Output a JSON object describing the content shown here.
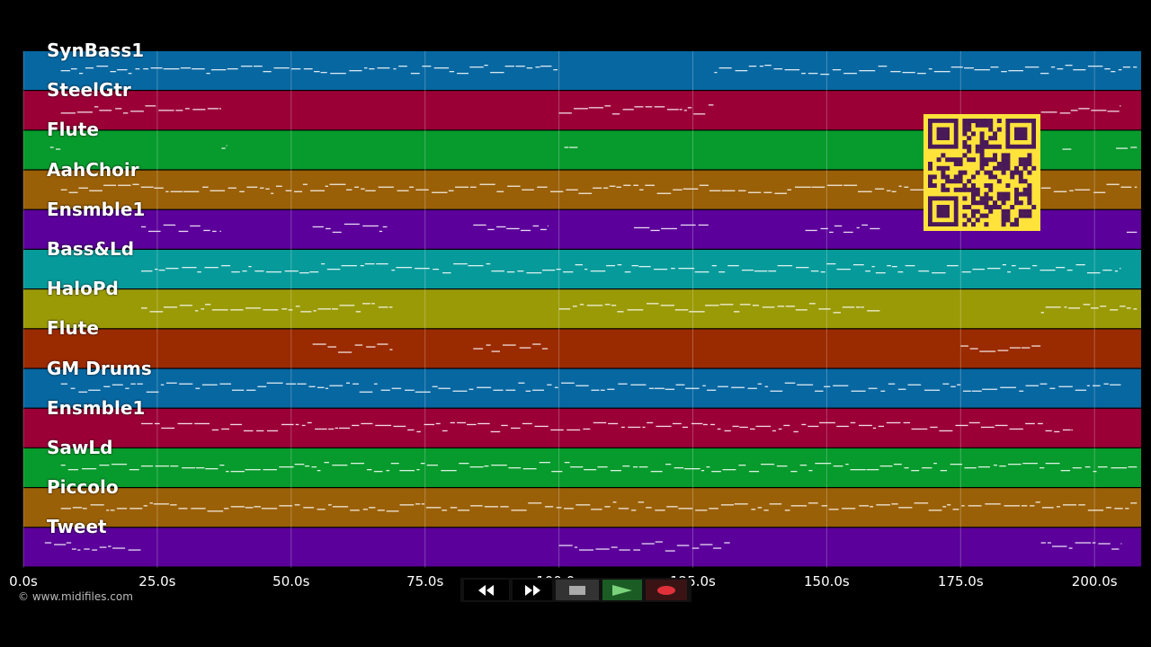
{
  "tracks": [
    {
      "name": "SynBass1",
      "color": "#0767a1",
      "note": "#ffffff"
    },
    {
      "name": "SteelGtr",
      "color": "#9a0036",
      "note": "#ffffff"
    },
    {
      "name": "Flute",
      "color": "#079a2c",
      "note": "#ffffff"
    },
    {
      "name": "AahChoir",
      "color": "#9a6007",
      "note": "#ffffff"
    },
    {
      "name": "Ensmble1",
      "color": "#5b009a",
      "note": "#ffffff"
    },
    {
      "name": "Bass&Ld",
      "color": "#079a9a",
      "note": "#ffffff"
    },
    {
      "name": "HaloPd",
      "color": "#9a9a07",
      "note": "#ffffff"
    },
    {
      "name": "Flute",
      "color": "#9a2a00",
      "note": "#ffffff"
    },
    {
      "name": "GM Drums",
      "color": "#0767a1",
      "note": "#ffffff"
    },
    {
      "name": "Ensmble1",
      "color": "#9a0036",
      "note": "#ffffff"
    },
    {
      "name": "SawLd",
      "color": "#079a2c",
      "note": "#ffffff"
    },
    {
      "name": "Piccolo",
      "color": "#9a6007",
      "note": "#ffffff"
    },
    {
      "name": "Tweet",
      "color": "#5b009a",
      "note": "#ffffff"
    }
  ],
  "time_axis": {
    "ticks": [
      "0.0s",
      "25.0s",
      "50.0s",
      "75.0s",
      "100.0s",
      "125.0s",
      "150.0s",
      "175.0s",
      "200.0s"
    ],
    "max_seconds": 208.7
  },
  "copyright": "© www.midifiles.com",
  "transport": {
    "rewind_icon": "rewind-icon",
    "fast_forward_icon": "fast-forward-icon",
    "stop_icon": "stop-icon",
    "play_icon": "play-icon",
    "record_icon": "record-icon",
    "play_color": "#7ad37a",
    "record_color": "#e0313a"
  },
  "qr_code": {
    "color": "#ffe33b",
    "fg": "#4a1a58"
  }
}
